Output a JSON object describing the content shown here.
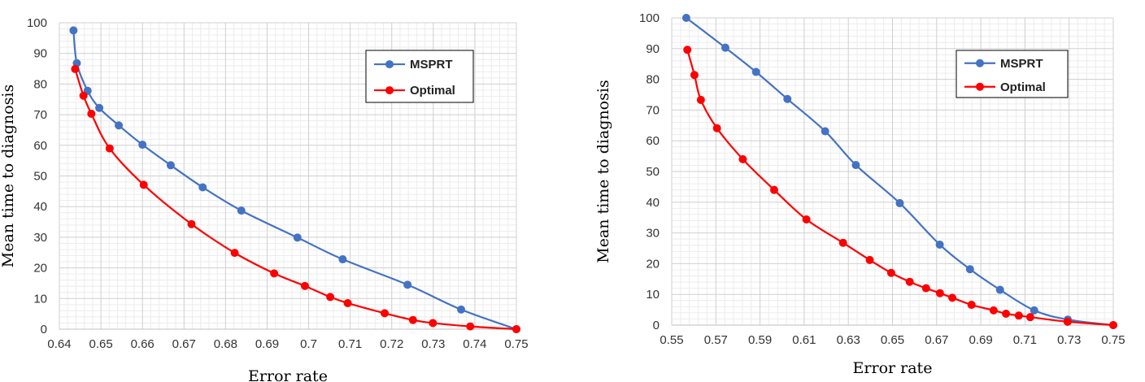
{
  "chart_data": [
    {
      "type": "line",
      "xlabel": "Error rate",
      "ylabel": "Mean time to diagnosis",
      "xlim": [
        0.64,
        0.75
      ],
      "ylim": [
        0,
        100
      ],
      "x_ticks": [
        "0.64",
        "0.65",
        "0.66",
        "0.67",
        "0.68",
        "0.69",
        "0.7",
        "0.71",
        "0.72",
        "0.73",
        "0.74",
        "0.75"
      ],
      "y_ticks": [
        "0",
        "10",
        "20",
        "30",
        "40",
        "50",
        "60",
        "70",
        "80",
        "90",
        "100"
      ],
      "grid": true,
      "legend_position": "top-right",
      "series": [
        {
          "name": "MSPRT",
          "color": "#4472C4",
          "x": [
            0.6434,
            0.6442,
            0.6468,
            0.6496,
            0.6543,
            0.66,
            0.6668,
            0.6745,
            0.6838,
            0.6973,
            0.7082,
            0.7238,
            0.7367,
            0.75
          ],
          "y": [
            97.5,
            86.8,
            77.8,
            72.2,
            66.5,
            60.2,
            53.5,
            46.3,
            38.7,
            29.9,
            22.8,
            14.5,
            6.4,
            0.0
          ]
        },
        {
          "name": "Optimal",
          "color": "#FF0000",
          "x": [
            0.6438,
            0.6458,
            0.6477,
            0.6521,
            0.6603,
            0.6718,
            0.6822,
            0.6917,
            0.6991,
            0.7052,
            0.7094,
            0.7183,
            0.7251,
            0.7299,
            0.7389,
            0.75
          ],
          "y": [
            84.9,
            76.2,
            70.3,
            59.0,
            47.1,
            34.3,
            24.9,
            18.2,
            14.1,
            10.5,
            8.5,
            5.2,
            3.0,
            2.0,
            0.9,
            0.0
          ]
        }
      ]
    },
    {
      "type": "line",
      "xlabel": "Error rate",
      "ylabel": "Mean time to diagnosis",
      "xlim": [
        0.55,
        0.75
      ],
      "ylim": [
        0,
        100
      ],
      "x_ticks": [
        "0.55",
        "0.57",
        "0.59",
        "0.61",
        "0.63",
        "0.65",
        "0.67",
        "0.69",
        "0.71",
        "0.73",
        "0.75"
      ],
      "y_ticks": [
        "0",
        "10",
        "20",
        "30",
        "40",
        "50",
        "60",
        "70",
        "80",
        "90",
        "100"
      ],
      "grid": true,
      "legend_position": "top-right",
      "series": [
        {
          "name": "MSPRT",
          "color": "#4472C4",
          "x": [
            0.5566,
            0.5743,
            0.5882,
            0.6024,
            0.6195,
            0.6334,
            0.6533,
            0.6714,
            0.6851,
            0.6987,
            0.7142,
            0.7294,
            0.75
          ],
          "y": [
            100,
            90.3,
            82.4,
            73.6,
            63.1,
            52.1,
            39.7,
            26.2,
            18.2,
            11.5,
            4.8,
            1.8,
            0.0
          ]
        },
        {
          "name": "Optimal",
          "color": "#FF0000",
          "x": [
            0.5571,
            0.5603,
            0.5632,
            0.5705,
            0.5822,
            0.5964,
            0.611,
            0.6276,
            0.6397,
            0.6494,
            0.6578,
            0.6652,
            0.6715,
            0.6771,
            0.6858,
            0.6958,
            0.7014,
            0.7072,
            0.7124,
            0.7293,
            0.75
          ],
          "y": [
            89.6,
            81.4,
            73.3,
            64.1,
            54.0,
            44.0,
            34.4,
            26.8,
            21.2,
            17.0,
            14.1,
            12.0,
            10.4,
            8.9,
            6.6,
            4.8,
            3.7,
            3.1,
            2.6,
            1.1,
            0.0
          ]
        }
      ]
    }
  ]
}
